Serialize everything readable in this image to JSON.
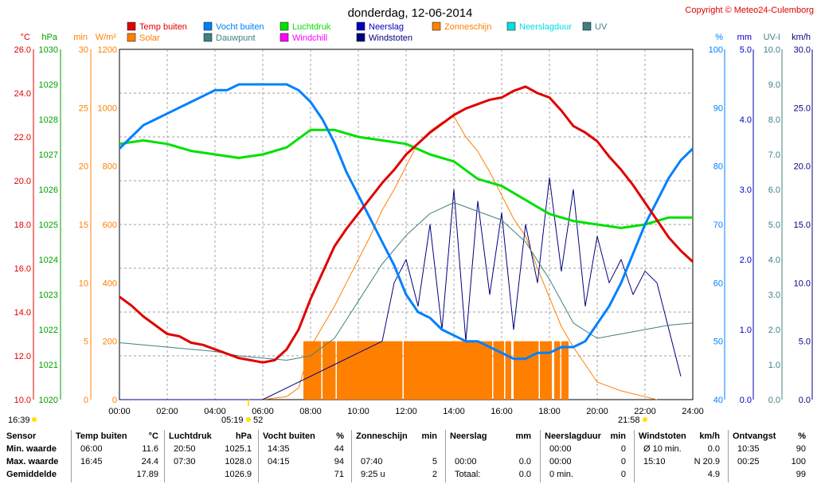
{
  "header": {
    "title": "donderdag, 12-06-2014",
    "copyright": "Copyright © Meteo24-Culemborg"
  },
  "legend": [
    {
      "label": "Temp buiten",
      "color": "#e00000"
    },
    {
      "label": "Solar",
      "color": "#ff8000"
    },
    {
      "label": "Vocht buiten",
      "color": "#0080ff"
    },
    {
      "label": "Dauwpunt",
      "color": "#408080"
    },
    {
      "label": "Luchtdruk",
      "color": "#00e000"
    },
    {
      "label": "Windchill",
      "color": "#ff00ff"
    },
    {
      "label": "Neerslag",
      "color": "#0000c0"
    },
    {
      "label": "Windstoten",
      "color": "#000080"
    },
    {
      "label": "Zonneschijn",
      "color": "#ff8000"
    },
    {
      "label": "Neerslagduur",
      "color": "#00e0e0"
    },
    {
      "label": "UV",
      "color": "#408080"
    }
  ],
  "axis_units": {
    "left": [
      "°C",
      "hPa",
      "min",
      "W/m²"
    ],
    "right": [
      "%",
      "mm",
      "UV-I",
      "km/h"
    ]
  },
  "sun": {
    "sunrise": "05:19",
    "sunset": "21:58",
    "moonset": "16:39",
    "uv_label": "52"
  },
  "chart_data": {
    "type": "line",
    "x_ticks": [
      "00:00",
      "02:00",
      "04:00",
      "06:00",
      "08:00",
      "10:00",
      "12:00",
      "14:00",
      "16:00",
      "18:00",
      "20:00",
      "22:00",
      "24:00"
    ],
    "xlim": [
      0,
      24
    ],
    "axes": {
      "temp": {
        "ylim": [
          10,
          26
        ],
        "ticks": [
          "10.0",
          "12.0",
          "14.0",
          "16.0",
          "18.0",
          "20.0",
          "22.0",
          "24.0",
          "26.0"
        ]
      },
      "pressure": {
        "ylim": [
          1020,
          1030
        ],
        "ticks": [
          "1020",
          "1021",
          "1022",
          "1023",
          "1024",
          "1025",
          "1026",
          "1027",
          "1028",
          "1029",
          "1030"
        ]
      },
      "sunshine": {
        "ylim": [
          0,
          30
        ],
        "ticks": [
          "0",
          "5",
          "10",
          "15",
          "20",
          "25",
          "30"
        ]
      },
      "solar": {
        "ylim": [
          0,
          1200
        ],
        "ticks": [
          "0",
          "200",
          "400",
          "600",
          "800",
          "1000",
          "1200"
        ]
      },
      "humidity": {
        "ylim": [
          40,
          100
        ],
        "ticks": [
          "40",
          "50",
          "60",
          "70",
          "80",
          "90",
          "100"
        ]
      },
      "rain": {
        "ylim": [
          0,
          5
        ],
        "ticks": [
          "0.0",
          "1.0",
          "2.0",
          "3.0",
          "4.0",
          "5.0"
        ]
      },
      "uv": {
        "ylim": [
          0,
          10
        ],
        "ticks": [
          "0.0",
          "1.0",
          "2.0",
          "3.0",
          "4.0",
          "5.0",
          "6.0",
          "7.0",
          "8.0",
          "9.0",
          "10.0"
        ]
      },
      "wind": {
        "ylim": [
          0,
          30
        ],
        "ticks": [
          "0.0",
          "5.0",
          "10.0",
          "15.0",
          "20.0",
          "25.0",
          "30.0"
        ]
      }
    },
    "series": [
      {
        "name": "Temp buiten",
        "axis": "temp",
        "x": [
          0,
          0.5,
          1,
          1.5,
          2,
          2.5,
          3,
          3.5,
          4,
          4.5,
          5,
          5.5,
          6,
          6.5,
          7,
          7.5,
          8,
          8.5,
          9,
          9.5,
          10,
          10.5,
          11,
          11.5,
          12,
          12.5,
          13,
          13.5,
          14,
          14.5,
          15,
          15.5,
          16,
          16.5,
          17,
          17.5,
          18,
          18.5,
          19,
          19.5,
          20,
          20.5,
          21,
          21.5,
          22,
          22.5,
          23,
          23.5,
          24
        ],
        "y": [
          14.7,
          14.3,
          13.8,
          13.4,
          13.0,
          12.9,
          12.6,
          12.5,
          12.3,
          12.1,
          11.9,
          11.8,
          11.7,
          11.8,
          12.3,
          13.2,
          14.6,
          15.8,
          17.0,
          17.8,
          18.5,
          19.2,
          19.9,
          20.5,
          21.2,
          21.7,
          22.2,
          22.6,
          23.0,
          23.3,
          23.5,
          23.7,
          23.8,
          24.1,
          24.3,
          24.0,
          23.8,
          23.2,
          22.5,
          22.2,
          21.8,
          21.1,
          20.5,
          19.8,
          19.0,
          18.2,
          17.4,
          16.8,
          16.3
        ]
      },
      {
        "name": "Vocht buiten",
        "axis": "humidity",
        "x": [
          0,
          0.5,
          1,
          1.5,
          2,
          2.5,
          3,
          3.5,
          4,
          4.5,
          5,
          5.5,
          6,
          6.5,
          7,
          7.5,
          8,
          8.5,
          9,
          9.5,
          10,
          10.5,
          11,
          11.5,
          12,
          12.5,
          13,
          13.5,
          14,
          14.5,
          15,
          15.5,
          16,
          16.5,
          17,
          17.5,
          18,
          18.5,
          19,
          19.5,
          20,
          20.5,
          21,
          21.5,
          22,
          22.5,
          23,
          23.5,
          24
        ],
        "y": [
          83,
          85,
          87,
          88,
          89,
          90,
          91,
          92,
          93,
          93,
          94,
          94,
          94,
          94,
          94,
          93,
          91,
          88,
          84,
          79,
          75,
          71,
          67,
          63,
          58,
          55,
          54,
          52,
          51,
          50,
          50,
          49,
          48,
          47,
          47,
          48,
          48,
          49,
          49,
          50,
          53,
          56,
          60,
          65,
          70,
          74,
          78,
          81,
          83
        ]
      },
      {
        "name": "Dauwpunt",
        "axis": "temp",
        "x": [
          0,
          1,
          2,
          3,
          4,
          5,
          6,
          7,
          8,
          9,
          10,
          11,
          12,
          13,
          14,
          15,
          16,
          17,
          18,
          19,
          20,
          21,
          22,
          23,
          24
        ],
        "y": [
          12.6,
          12.5,
          12.4,
          12.3,
          12.2,
          12.0,
          11.9,
          11.8,
          12.0,
          12.8,
          14.5,
          16.2,
          17.5,
          18.5,
          19.0,
          18.6,
          18.2,
          17.2,
          15.5,
          13.5,
          12.8,
          13.0,
          13.2,
          13.4,
          13.5
        ]
      },
      {
        "name": "Luchtdruk",
        "axis": "pressure",
        "x": [
          0,
          1,
          2,
          3,
          4,
          5,
          6,
          7,
          8,
          9,
          10,
          11,
          12,
          13,
          14,
          15,
          16,
          17,
          18,
          19,
          20,
          21,
          22,
          23,
          24
        ],
        "y": [
          1027.3,
          1027.4,
          1027.3,
          1027.1,
          1027.0,
          1026.9,
          1027.0,
          1027.2,
          1027.7,
          1027.7,
          1027.5,
          1027.4,
          1027.3,
          1027.0,
          1026.8,
          1026.3,
          1026.1,
          1025.7,
          1025.3,
          1025.1,
          1025.0,
          1024.9,
          1025.0,
          1025.2,
          1025.2
        ]
      },
      {
        "name": "Solar",
        "axis": "solar",
        "x": [
          0,
          6,
          7,
          7.5,
          8,
          8.5,
          9,
          9.5,
          10,
          10.5,
          11,
          11.5,
          12,
          12.5,
          13,
          13.5,
          14,
          14.5,
          15,
          15.5,
          16,
          16.5,
          17,
          17.5,
          18,
          18.5,
          19,
          19.5,
          20,
          21,
          22,
          22.5
        ],
        "y": [
          0,
          0,
          10,
          40,
          180,
          250,
          320,
          400,
          480,
          560,
          650,
          720,
          800,
          880,
          920,
          950,
          970,
          900,
          850,
          780,
          700,
          620,
          560,
          450,
          350,
          250,
          180,
          120,
          60,
          30,
          10,
          0
        ]
      },
      {
        "name": "Windstoten",
        "axis": "wind",
        "x": [
          0,
          2,
          4,
          6,
          7,
          8,
          9,
          10,
          11,
          11.5,
          12,
          12.5,
          13,
          13.5,
          14,
          14.5,
          15,
          15.5,
          16,
          16.5,
          17,
          17.5,
          18,
          18.5,
          19,
          19.5,
          20,
          20.5,
          21,
          21.5,
          22,
          22.5,
          23,
          23.5
        ],
        "y": [
          0,
          0,
          0,
          0,
          1,
          2,
          3,
          4,
          5,
          10,
          12,
          8,
          15,
          6,
          18,
          5,
          17,
          9,
          16,
          6,
          15,
          10,
          19,
          11,
          18,
          8,
          14,
          10,
          12,
          9,
          11,
          10,
          6,
          2
        ]
      }
    ],
    "sunshine_minutes_bars": {
      "start": 7.7,
      "end": 18.8,
      "minutes": 5,
      "axis": "sunshine"
    }
  },
  "table": {
    "headers": [
      {
        "label": "Sensor",
        "unit": ""
      },
      {
        "label": "Temp buiten",
        "unit": "°C"
      },
      {
        "label": "Luchtdruk",
        "unit": "hPa"
      },
      {
        "label": "Vocht buiten",
        "unit": "%"
      },
      {
        "label": "Zonneschijn",
        "unit": "min"
      },
      {
        "label": "Neerslag",
        "unit": "mm"
      },
      {
        "label": "Neerslagduur",
        "unit": "min"
      },
      {
        "label": "Windstoten",
        "unit": "km/h"
      },
      {
        "label": "Ontvangst",
        "unit": "%"
      }
    ],
    "rows": [
      {
        "label": "Min. waarde",
        "cells": [
          [
            "06:00",
            "11.6"
          ],
          [
            "20:50",
            "1025.1"
          ],
          [
            "14:35",
            "44"
          ],
          [
            "",
            ""
          ],
          [
            "",
            ""
          ],
          [
            "00:00",
            "0"
          ],
          [
            "Ø 10 min.",
            "0.0"
          ],
          [
            "10:35",
            "90"
          ]
        ]
      },
      {
        "label": "Max. waarde",
        "cells": [
          [
            "16:45",
            "24.4"
          ],
          [
            "07:30",
            "1028.0"
          ],
          [
            "04:15",
            "94"
          ],
          [
            "07:40",
            "5"
          ],
          [
            "00:00",
            "0.0"
          ],
          [
            "00:00",
            "0"
          ],
          [
            "15:10",
            "N 20.9"
          ],
          [
            "00:25",
            "100"
          ]
        ]
      },
      {
        "label": "Gemiddelde",
        "cells": [
          [
            "",
            "17.89"
          ],
          [
            "",
            "1026.9"
          ],
          [
            "",
            "71"
          ],
          [
            "9:25 u",
            "2"
          ],
          [
            "Totaal:",
            "0.0"
          ],
          [
            "0 min.",
            "0"
          ],
          [
            "",
            "4.9"
          ],
          [
            "",
            "99"
          ]
        ]
      }
    ]
  }
}
